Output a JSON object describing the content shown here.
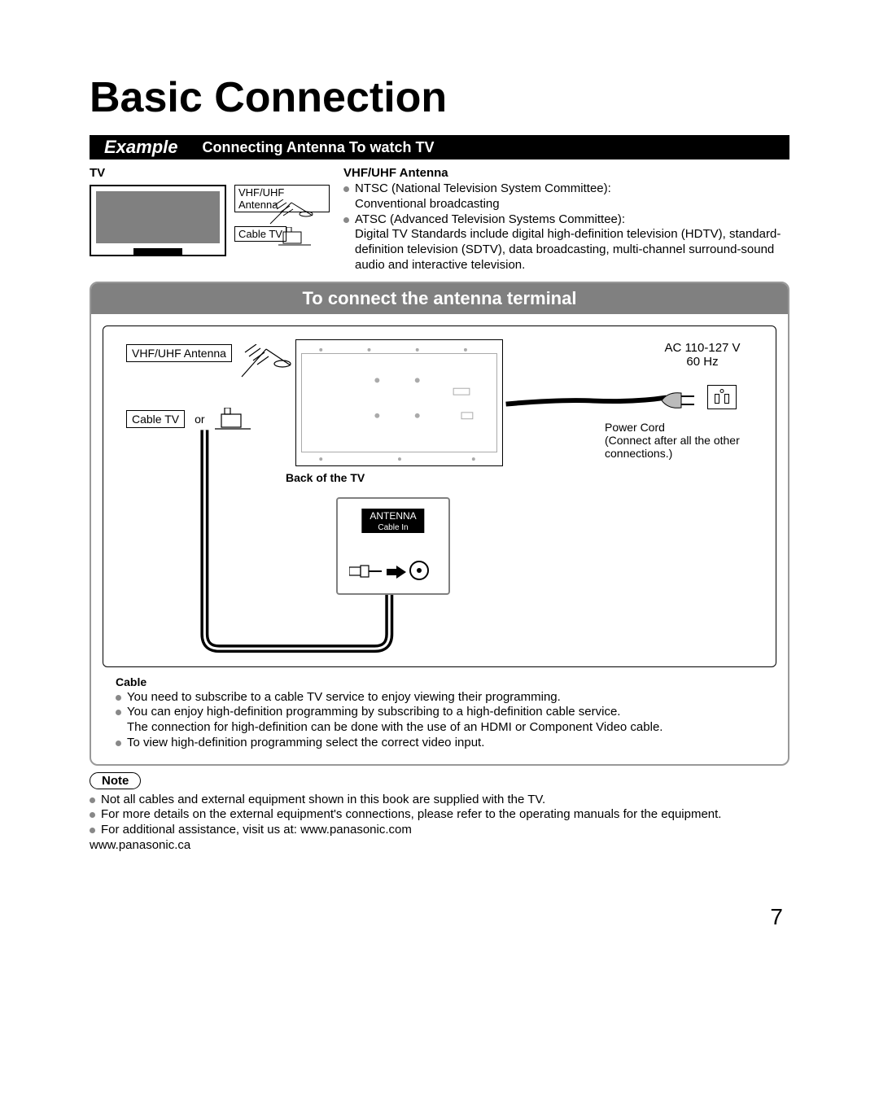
{
  "title": "Basic Connection",
  "example": {
    "badge": "Example",
    "subtitle": "Connecting Antenna To watch TV"
  },
  "top": {
    "tv_label": "TV",
    "antenna_box": "VHF/UHF Antenna",
    "cable_box": "Cable TV",
    "vhf_heading": "VHF/UHF Antenna",
    "bullets": [
      "NTSC (National Television System Committee):\nConventional broadcasting",
      "ATSC (Advanced Television Systems Committee):\nDigital TV Standards include digital high-definition television (HDTV), standard-definition television (SDTV), data broadcasting, multi-channel surround-sound audio and interactive television."
    ]
  },
  "connect": {
    "title": "To connect the antenna terminal",
    "antenna_box": "VHF/UHF Antenna",
    "cable_box": "Cable TV",
    "or": "or",
    "back_label": "Back of the TV",
    "ac_line1": "AC 110-127 V",
    "ac_line2": "60 Hz",
    "power_cord": "Power Cord",
    "power_note": "(Connect after all the other connections.)",
    "port_label_top": "ANTENNA",
    "port_label_bottom": "Cable In",
    "cable_heading": "Cable",
    "cable_bullets": [
      "You need to subscribe to a cable TV service to enjoy viewing their programming.",
      "You can enjoy high-definition programming by subscribing to a high-definition cable service.\nThe connection for high-definition can be done with the use of an HDMI or Component Video cable.",
      "To view high-definition programming select the correct video input."
    ]
  },
  "notes": {
    "pill": "Note",
    "items": [
      "Not all cables and external equipment shown in this book are supplied with the TV.",
      "For more details on the external equipment's connections, please refer to the operating manuals for the equipment.",
      "For additional assistance, visit us at:  www.panasonic.com"
    ],
    "extra_url": "www.panasonic.ca"
  },
  "page_number": "7",
  "colors": {
    "gray_header": "#808080",
    "bullet": "#888888",
    "border_gray": "#999999"
  }
}
